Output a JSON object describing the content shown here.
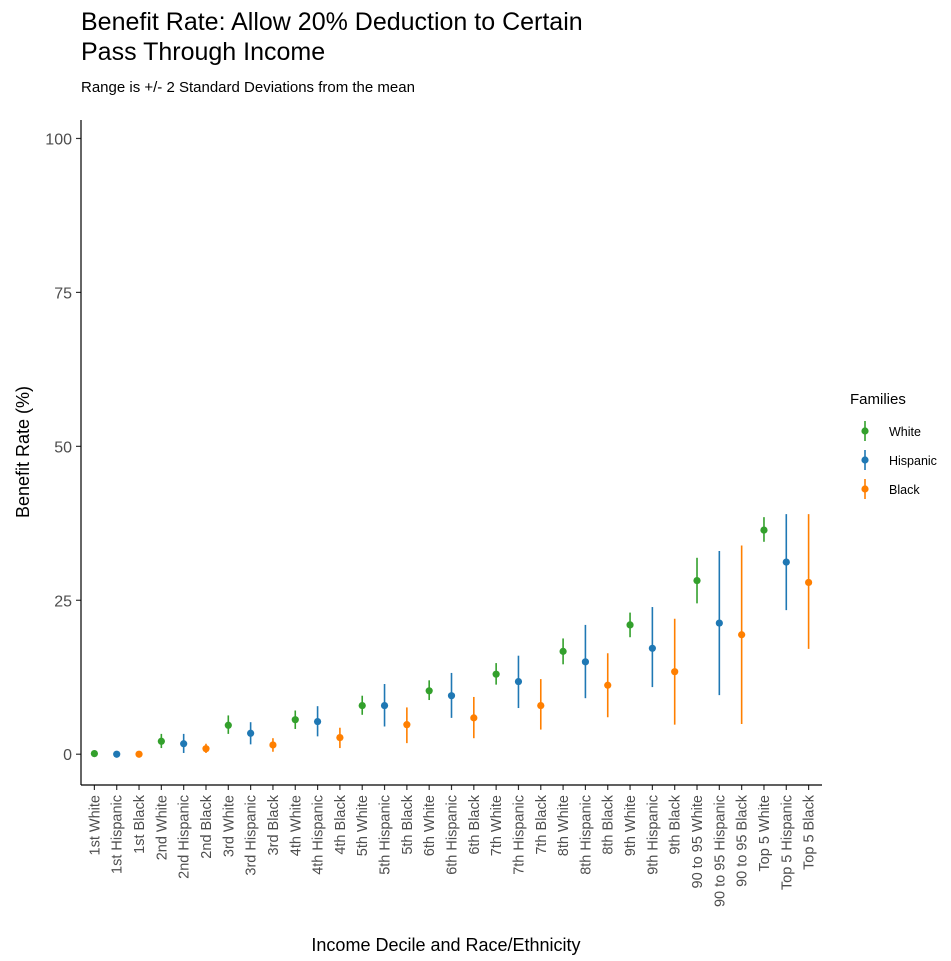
{
  "chart_data": {
    "type": "scatter",
    "title_line1": "Benefit Rate: Allow 20% Deduction to Certain",
    "title_line2": "Pass Through Income",
    "subtitle": "Range is +/- 2 Standard Deviations from the mean",
    "xlabel": "Income Decile and Race/Ethnicity",
    "ylabel": "Benefit Rate (%)",
    "ylim": [
      -5,
      103
    ],
    "yticks": [
      0,
      25,
      50,
      75,
      100
    ],
    "ytick_labels": [
      "0",
      "25",
      "50",
      "75",
      "100"
    ],
    "grid": false,
    "legend": {
      "title": "Families",
      "placement": "right",
      "entries": [
        "White",
        "Hispanic",
        "Black"
      ]
    },
    "colors": {
      "White": "#33a02c",
      "Hispanic": "#1f78b4",
      "Black": "#ff7f00"
    },
    "categories": [
      "1st White",
      "1st Hispanic",
      "1st Black",
      "2nd White",
      "2nd Hispanic",
      "2nd Black",
      "3rd White",
      "3rd Hispanic",
      "3rd Black",
      "4th White",
      "4th Hispanic",
      "4th Black",
      "5th White",
      "5th Hispanic",
      "5th Black",
      "6th White",
      "6th Hispanic",
      "6th Black",
      "7th White",
      "7th Hispanic",
      "7th Black",
      "8th White",
      "8th Hispanic",
      "8th Black",
      "9th White",
      "9th Hispanic",
      "9th Black",
      "90 to 95 White",
      "90 to 95 Hispanic",
      "90 to 95 Black",
      "Top 5 White",
      "Top 5 Hispanic",
      "Top 5 Black"
    ],
    "points": [
      {
        "group": "White",
        "y": 0.1,
        "low": 0.0,
        "high": 0.3
      },
      {
        "group": "Hispanic",
        "y": 0.0,
        "low": 0.0,
        "high": 0.2
      },
      {
        "group": "Black",
        "y": 0.0,
        "low": 0.0,
        "high": 0.1
      },
      {
        "group": "White",
        "y": 2.1,
        "low": 1.0,
        "high": 3.3
      },
      {
        "group": "Hispanic",
        "y": 1.7,
        "low": 0.2,
        "high": 3.3
      },
      {
        "group": "Black",
        "y": 0.9,
        "low": 0.2,
        "high": 1.7
      },
      {
        "group": "White",
        "y": 4.7,
        "low": 3.3,
        "high": 6.3
      },
      {
        "group": "Hispanic",
        "y": 3.4,
        "low": 1.6,
        "high": 5.2
      },
      {
        "group": "Black",
        "y": 1.5,
        "low": 0.4,
        "high": 2.6
      },
      {
        "group": "White",
        "y": 5.6,
        "low": 4.1,
        "high": 7.1
      },
      {
        "group": "Hispanic",
        "y": 5.3,
        "low": 2.9,
        "high": 7.8
      },
      {
        "group": "Black",
        "y": 2.7,
        "low": 1.0,
        "high": 4.3
      },
      {
        "group": "White",
        "y": 7.9,
        "low": 6.4,
        "high": 9.5
      },
      {
        "group": "Hispanic",
        "y": 7.9,
        "low": 4.5,
        "high": 11.4
      },
      {
        "group": "Black",
        "y": 4.8,
        "low": 1.8,
        "high": 7.6
      },
      {
        "group": "White",
        "y": 10.3,
        "low": 8.8,
        "high": 12.0
      },
      {
        "group": "Hispanic",
        "y": 9.5,
        "low": 5.9,
        "high": 13.2
      },
      {
        "group": "Black",
        "y": 5.9,
        "low": 2.6,
        "high": 9.3
      },
      {
        "group": "White",
        "y": 13.0,
        "low": 11.3,
        "high": 14.8
      },
      {
        "group": "Hispanic",
        "y": 11.8,
        "low": 7.5,
        "high": 16.0
      },
      {
        "group": "Black",
        "y": 7.9,
        "low": 4.0,
        "high": 12.2
      },
      {
        "group": "White",
        "y": 16.7,
        "low": 14.6,
        "high": 18.8
      },
      {
        "group": "Hispanic",
        "y": 15.0,
        "low": 9.1,
        "high": 21.0
      },
      {
        "group": "Black",
        "y": 11.2,
        "low": 6.0,
        "high": 16.4
      },
      {
        "group": "White",
        "y": 21.0,
        "low": 19.0,
        "high": 23.0
      },
      {
        "group": "Hispanic",
        "y": 17.2,
        "low": 10.9,
        "high": 23.9
      },
      {
        "group": "Black",
        "y": 13.4,
        "low": 4.8,
        "high": 22.0
      },
      {
        "group": "White",
        "y": 28.2,
        "low": 24.5,
        "high": 31.9
      },
      {
        "group": "Hispanic",
        "y": 21.3,
        "low": 9.6,
        "high": 33.0
      },
      {
        "group": "Black",
        "y": 19.4,
        "low": 4.9,
        "high": 33.9
      },
      {
        "group": "White",
        "y": 36.4,
        "low": 34.5,
        "high": 38.5
      },
      {
        "group": "Hispanic",
        "y": 31.2,
        "low": 23.4,
        "high": 39.0
      },
      {
        "group": "Black",
        "y": 27.9,
        "low": 17.1,
        "high": 39.0
      }
    ]
  }
}
